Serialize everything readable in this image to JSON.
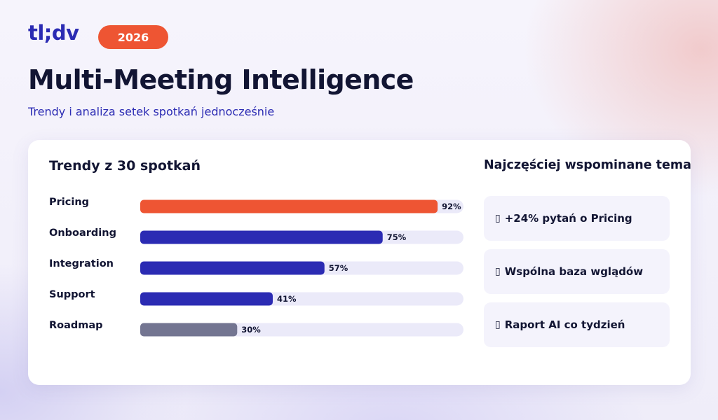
{
  "header": {
    "logo": "tl;dv",
    "year": "2026",
    "title": "Multi-Meeting Intelligence",
    "subtitle": "Trendy i analiza setek spotkań jednocześnie"
  },
  "colors": {
    "accent_orange": "#ee5533",
    "brand_blue": "#2b2bb3",
    "muted_gray": "#737591",
    "track": "#ebeaf9",
    "text_dark": "#121533"
  },
  "chart_data": {
    "type": "bar",
    "orientation": "horizontal",
    "title": "Trendy z 30 spotkań",
    "categories": [
      "Pricing",
      "Onboarding",
      "Integration",
      "Support",
      "Roadmap"
    ],
    "values": [
      92,
      75,
      57,
      41,
      30
    ],
    "value_labels": [
      "92%",
      "75%",
      "57%",
      "41%",
      "30%"
    ],
    "bar_colors": [
      "#ee5533",
      "#2b2bb3",
      "#2b2bb3",
      "#2b2bb3",
      "#737591"
    ],
    "xlim": [
      0,
      100
    ],
    "grid": false,
    "legend": "none"
  },
  "insights_panel": {
    "title": "Najczęściej wspominane tematy",
    "items": [
      {
        "icon": "chart-icon",
        "glyph": "▯",
        "text": "+24% pytań o Pricing"
      },
      {
        "icon": "link-icon",
        "glyph": "▯",
        "text": "Wspólna baza wglądów"
      },
      {
        "icon": "robot-icon",
        "glyph": "▯",
        "text": "Raport AI co tydzień"
      }
    ]
  }
}
